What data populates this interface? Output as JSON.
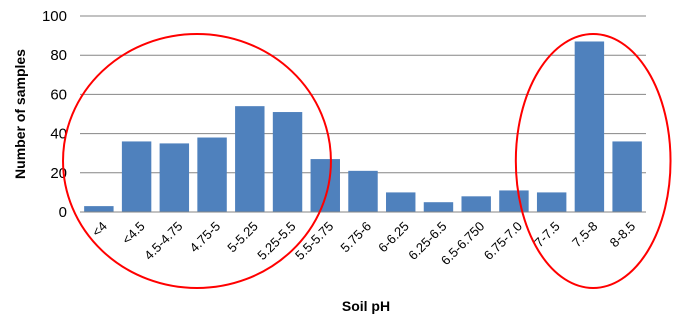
{
  "chart_data": {
    "type": "bar",
    "title": "",
    "xlabel": "Soil pH",
    "ylabel": "Number of samples",
    "ylim": [
      0,
      100
    ],
    "yticks": [
      0,
      20,
      40,
      60,
      80,
      100
    ],
    "grid": true,
    "categories": [
      "<4",
      "<4.5",
      "4.5-4.75",
      "4.75-5",
      "5-5.25",
      "5.25-5.5",
      "5.5-5.75",
      "5.75-6",
      "6-6.25",
      "6.25-6.5",
      "6.5-6.750",
      "6.75-7.0",
      "7-7.5",
      "7.5-8",
      "8-8.5"
    ],
    "values": [
      3,
      36,
      35,
      38,
      54,
      51,
      27,
      21,
      10,
      5,
      8,
      11,
      10,
      87,
      36
    ],
    "bar_color": "#4F81BD",
    "annotations": [
      {
        "type": "ellipse",
        "color": "#FF0000",
        "covers": [
          "<4",
          "<4.5",
          "4.5-4.75",
          "4.75-5",
          "5-5.25",
          "5.25-5.5"
        ]
      },
      {
        "type": "ellipse",
        "color": "#FF0000",
        "covers": [
          "7-7.5",
          "7.5-8",
          "8-8.5"
        ]
      }
    ]
  }
}
